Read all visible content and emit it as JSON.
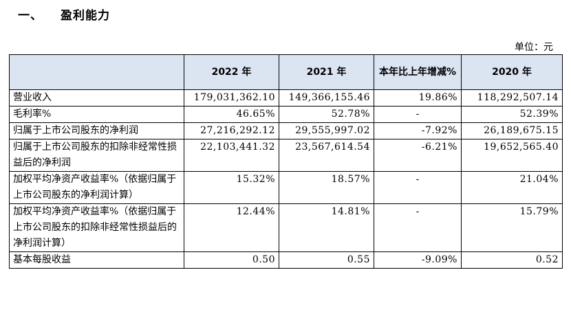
{
  "section": {
    "number": "一、",
    "title": "盈利能力"
  },
  "unit_label": "单位：元",
  "table": {
    "headers": [
      "",
      "2022 年",
      "2021 年",
      "本年比上年增减%",
      "2020 年"
    ],
    "rows": [
      {
        "label": "营业收入",
        "y2022": "179,031,362.10",
        "y2021": "149,366,155.46",
        "change": "19.86%",
        "y2020": "118,292,507.14"
      },
      {
        "label": "毛利率%",
        "y2022": "46.65%",
        "y2021": "52.78%",
        "change": "-",
        "y2020": "52.39%"
      },
      {
        "label": "归属于上市公司股东的净利润",
        "y2022": "27,216,292.12",
        "y2021": "29,555,997.02",
        "change": "-7.92%",
        "y2020": "26,189,675.15"
      },
      {
        "label": "归属于上市公司股东的扣除非经常性损益后的净利润",
        "y2022": "22,103,441.32",
        "y2021": "23,567,614.54",
        "change": "-6.21%",
        "y2020": "19,652,565.40"
      },
      {
        "label": "加权平均净资产收益率%（依据归属于上市公司股东的净利润计算）",
        "y2022": "15.32%",
        "y2021": "18.57%",
        "change": "-",
        "y2020": "21.04%"
      },
      {
        "label": "加权平均净资产收益率%（依据归属于上市公司股东的扣除非经常性损益后的净利润计算）",
        "y2022": "12.44%",
        "y2021": "14.81%",
        "change": "-",
        "y2020": "15.79%"
      },
      {
        "label": "基本每股收益",
        "y2022": "0.50",
        "y2021": "0.55",
        "change": "-9.09%",
        "y2020": "0.52"
      }
    ]
  }
}
